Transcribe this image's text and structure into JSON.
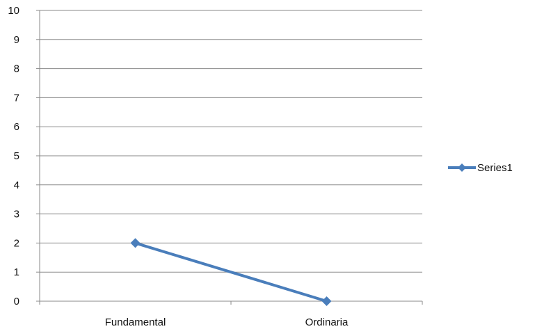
{
  "chart_data": {
    "type": "line",
    "categories": [
      "Fundamental",
      "Ordinaria"
    ],
    "series": [
      {
        "name": "Series1",
        "values": [
          2,
          0
        ],
        "color": "#4a7ebb"
      }
    ],
    "ylim": [
      0,
      10
    ],
    "yticks": [
      0,
      1,
      2,
      3,
      4,
      5,
      6,
      7,
      8,
      9,
      10
    ],
    "grid": true,
    "legend_position": "right",
    "marker": "diamond"
  }
}
